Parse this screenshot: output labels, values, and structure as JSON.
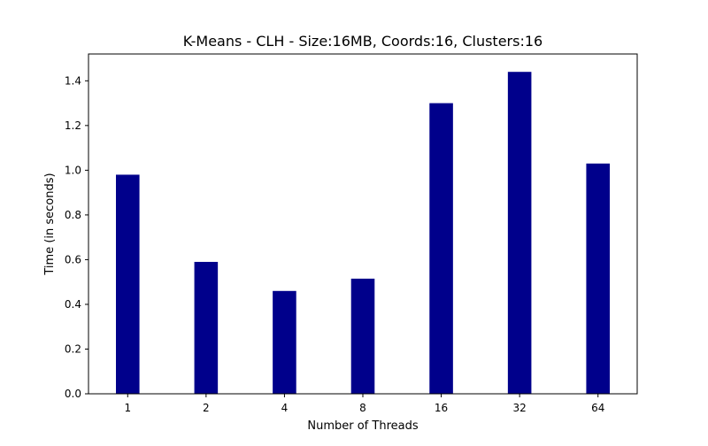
{
  "chart_data": {
    "type": "bar",
    "title": "K-Means - CLH - Size:16MB, Coords:16, Clusters:16",
    "xlabel": "Number of Threads",
    "ylabel": "Time (in seconds)",
    "categories": [
      "1",
      "2",
      "4",
      "8",
      "16",
      "32",
      "64"
    ],
    "values": [
      0.98,
      0.59,
      0.46,
      0.515,
      1.3,
      1.44,
      1.03
    ],
    "ylim": [
      0,
      1.52
    ],
    "yticks": [
      "0.0",
      "0.2",
      "0.4",
      "0.6",
      "0.8",
      "1.0",
      "1.2",
      "1.4"
    ],
    "grid": false,
    "bar_color": "#00008b"
  }
}
